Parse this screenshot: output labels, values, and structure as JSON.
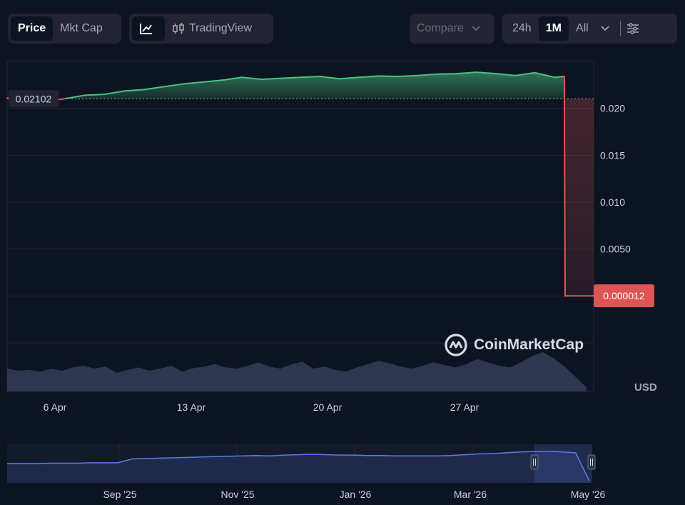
{
  "toolbar": {
    "metric_tabs": [
      {
        "label": "Price",
        "active": true
      },
      {
        "label": "Mkt Cap",
        "active": false
      }
    ],
    "chart_type": {
      "line_icon": "line-chart-icon",
      "candle_icon": "candlestick-icon",
      "tradingview_label": "TradingView"
    },
    "compare_label": "Compare",
    "ranges": [
      {
        "label": "24h",
        "active": false
      },
      {
        "label": "1M",
        "active": true
      },
      {
        "label": "All",
        "active": false
      }
    ],
    "dropdown_icon": "chevron-down-icon",
    "settings_icon": "sliders-icon"
  },
  "watermark": {
    "text": "CoinMarketCap",
    "icon": "coinmarketcap-logo-icon"
  },
  "currency_label": "USD",
  "colors": {
    "background": "#0d1421",
    "up": "#4cc07f",
    "down": "#e05455",
    "volume": "#323a55",
    "navigator": "#5a7ce8"
  },
  "chart_data": {
    "type": "line",
    "x_axis_ticks": [
      "6 Apr",
      "13 Apr",
      "20 Apr",
      "27 Apr"
    ],
    "x_range": [
      "2026-04-03",
      "2026-05-03"
    ],
    "ylim": [
      -0.005,
      0.025
    ],
    "y_ticks": [
      0.02,
      0.015,
      0.01,
      0.005
    ],
    "y_tick_labels": [
      "0.020",
      "0.015",
      "0.010",
      "0.0050"
    ],
    "reference_price": 0.02102,
    "reference_label": "0.02102",
    "current_price": 1.2e-05,
    "current_label": "0.000012",
    "series": [
      {
        "x": [
          "2026-04-03",
          "2026-04-04",
          "2026-04-05",
          "2026-04-06",
          "2026-04-07",
          "2026-04-08",
          "2026-04-09",
          "2026-04-10",
          "2026-04-11",
          "2026-04-12",
          "2026-04-13",
          "2026-04-14",
          "2026-04-15",
          "2026-04-16",
          "2026-04-17",
          "2026-04-18",
          "2026-04-19",
          "2026-04-20",
          "2026-04-21",
          "2026-04-22",
          "2026-04-23",
          "2026-04-24",
          "2026-04-25",
          "2026-04-26",
          "2026-04-27",
          "2026-04-28",
          "2026-04-29",
          "2026-04-30",
          "2026-05-01",
          "2026-05-01T12:00",
          "2026-05-01T13:00",
          "2026-05-02",
          "2026-05-03"
        ],
        "values": [
          0.0211,
          0.0209,
          0.0207,
          0.02105,
          0.0214,
          0.0215,
          0.02185,
          0.022,
          0.0223,
          0.0226,
          0.0228,
          0.023,
          0.0233,
          0.0231,
          0.0232,
          0.0233,
          0.0234,
          0.02315,
          0.0233,
          0.02345,
          0.0234,
          0.0235,
          0.02365,
          0.0237,
          0.02385,
          0.0237,
          0.0235,
          0.0238,
          0.0233,
          0.0234,
          1.2e-05,
          1.2e-05,
          1.2e-05
        ]
      }
    ],
    "volume": {
      "values": [
        0.55,
        0.5,
        0.52,
        0.48,
        0.55,
        0.5,
        0.58,
        0.62,
        0.55,
        0.6,
        0.45,
        0.52,
        0.58,
        0.5,
        0.55,
        0.62,
        0.48,
        0.56,
        0.6,
        0.66,
        0.58,
        0.55,
        0.62,
        0.7,
        0.6,
        0.55,
        0.65,
        0.72,
        0.55,
        0.6,
        0.52,
        0.48,
        0.58,
        0.66,
        0.74,
        0.68,
        0.6,
        0.55,
        0.62,
        0.7,
        0.64,
        0.58,
        0.66,
        0.78,
        0.7,
        0.62,
        0.58,
        0.7,
        0.85,
        0.95,
        0.8,
        0.6,
        0.35,
        0.1
      ]
    },
    "navigator": {
      "x_ticks": [
        "Sep '25",
        "Nov '25",
        "Jan '26",
        "Mar '26",
        "May '26"
      ],
      "values": [
        0.5,
        0.5,
        0.5,
        0.51,
        0.51,
        0.51,
        0.52,
        0.52,
        0.52,
        0.62,
        0.63,
        0.64,
        0.65,
        0.66,
        0.67,
        0.68,
        0.69,
        0.7,
        0.71,
        0.7,
        0.72,
        0.73,
        0.74,
        0.73,
        0.72,
        0.72,
        0.71,
        0.71,
        0.7,
        0.7,
        0.7,
        0.7,
        0.71,
        0.73,
        0.75,
        0.76,
        0.78,
        0.8,
        0.81,
        0.82,
        0.8,
        0.78,
        0.05
      ]
    }
  }
}
